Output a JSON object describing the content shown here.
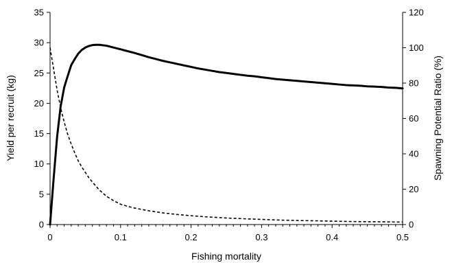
{
  "chart_data": {
    "type": "line",
    "xlabel": "Fishing mortality",
    "ylabel_left": "Yield per recruit (kg)",
    "ylabel_right": "Spawning Potential Ratio (%)",
    "xlim": [
      0,
      0.5
    ],
    "ylim_left": [
      0,
      35
    ],
    "ylim_right": [
      0,
      120
    ],
    "x_ticks": [
      "0",
      "0.1",
      "0.2",
      "0.3",
      "0.4",
      "0.5"
    ],
    "y_left_ticks": [
      "0",
      "5",
      "10",
      "15",
      "20",
      "25",
      "30",
      "35"
    ],
    "y_right_ticks": [
      "0",
      "20",
      "40",
      "60",
      "80",
      "100",
      "120"
    ],
    "grid": false,
    "legend": "none",
    "series": [
      {
        "axis": "left",
        "style": "solid",
        "x": [
          0,
          0.005,
          0.01,
          0.015,
          0.02,
          0.025,
          0.03,
          0.035,
          0.04,
          0.045,
          0.05,
          0.055,
          0.06,
          0.065,
          0.07,
          0.08,
          0.09,
          0.1,
          0.11,
          0.12,
          0.13,
          0.14,
          0.15,
          0.16,
          0.17,
          0.18,
          0.19,
          0.2,
          0.21,
          0.22,
          0.23,
          0.24,
          0.25,
          0.26,
          0.27,
          0.28,
          0.29,
          0.3,
          0.31,
          0.32,
          0.33,
          0.34,
          0.35,
          0.36,
          0.37,
          0.38,
          0.39,
          0.4,
          0.41,
          0.42,
          0.43,
          0.44,
          0.45,
          0.46,
          0.47,
          0.48,
          0.49,
          0.5
        ],
        "values": [
          0,
          7.5,
          14.5,
          19.5,
          22.6,
          24.5,
          26.3,
          27.3,
          28.2,
          28.8,
          29.2,
          29.45,
          29.6,
          29.65,
          29.65,
          29.5,
          29.2,
          28.9,
          28.6,
          28.3,
          27.95,
          27.6,
          27.3,
          27.0,
          26.75,
          26.5,
          26.25,
          26.0,
          25.75,
          25.55,
          25.35,
          25.15,
          25.0,
          24.85,
          24.7,
          24.55,
          24.45,
          24.3,
          24.15,
          24.0,
          23.9,
          23.8,
          23.7,
          23.6,
          23.5,
          23.4,
          23.3,
          23.2,
          23.1,
          23.0,
          22.95,
          22.9,
          22.8,
          22.75,
          22.7,
          22.6,
          22.55,
          22.45
        ]
      },
      {
        "axis": "right",
        "style": "dotted",
        "x": [
          0,
          0.005,
          0.01,
          0.015,
          0.02,
          0.025,
          0.03,
          0.035,
          0.04,
          0.045,
          0.05,
          0.055,
          0.06,
          0.07,
          0.08,
          0.09,
          0.1,
          0.11,
          0.12,
          0.14,
          0.16,
          0.18,
          0.2,
          0.22,
          0.25,
          0.28,
          0.3,
          0.32,
          0.35,
          0.38,
          0.4,
          0.43,
          0.45,
          0.48,
          0.5
        ],
        "values": [
          100,
          88,
          76,
          66,
          58,
          51,
          45.5,
          40.5,
          36,
          32.5,
          29.5,
          26.5,
          24,
          19.5,
          16,
          13.5,
          11.5,
          10.3,
          9.3,
          7.8,
          6.6,
          5.7,
          5.0,
          4.4,
          3.7,
          3.2,
          2.9,
          2.6,
          2.3,
          2.1,
          1.9,
          1.7,
          1.6,
          1.5,
          1.4
        ]
      }
    ]
  }
}
